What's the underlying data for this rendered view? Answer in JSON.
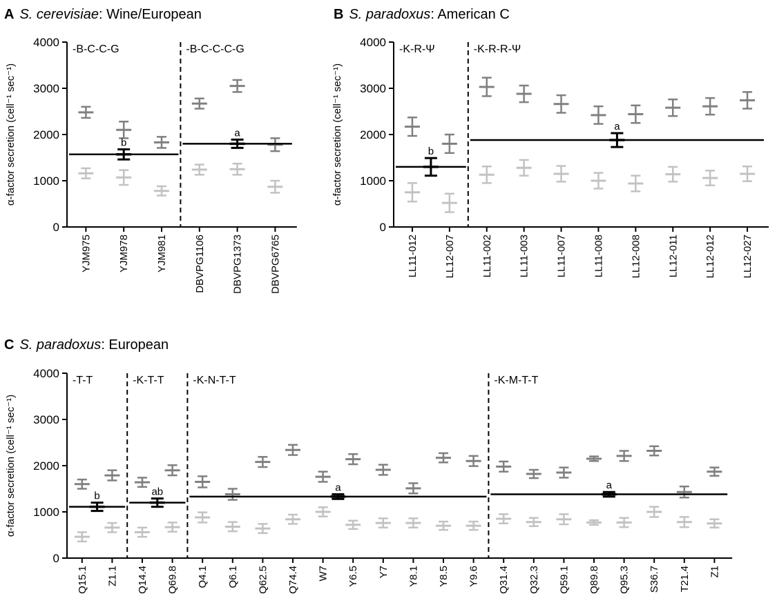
{
  "colors": {
    "dark": "#808080",
    "light": "#c2c2c2",
    "mean": "#000000"
  },
  "chart_data": [
    {
      "type": "scatter",
      "panel": "A",
      "title_italic": "S. cerevisiae",
      "title_rest": ": Wine/European",
      "ylabel": "α-factor secretion (cell⁻¹ sec⁻¹)",
      "ylim": [
        0,
        4000
      ],
      "yticks": [
        0,
        1000,
        2000,
        3000,
        4000
      ],
      "groups": [
        {
          "label": "-B-C-C-G",
          "categories": [
            "YJM975",
            "YJM978",
            "YJM981"
          ],
          "dark": [
            [
              2480,
              120
            ],
            [
              2100,
              180
            ],
            [
              1830,
              120
            ]
          ],
          "light": [
            [
              1160,
              110
            ],
            [
              1070,
              160
            ],
            [
              780,
              100
            ]
          ],
          "mean": 1570,
          "mean_err": 110,
          "sig": "b"
        },
        {
          "label": "-B-C-C-C-G",
          "categories": [
            "DBVPG1106",
            "DBVPG1373",
            "DBVPG6765"
          ],
          "dark": [
            [
              2670,
              110
            ],
            [
              3050,
              130
            ],
            [
              1780,
              140
            ]
          ],
          "light": [
            [
              1240,
              110
            ],
            [
              1250,
              120
            ],
            [
              870,
              130
            ]
          ],
          "mean": 1800,
          "mean_err": 90,
          "sig": "a"
        }
      ]
    },
    {
      "type": "scatter",
      "panel": "B",
      "title_italic": "S. paradoxus",
      "title_rest": ": American C",
      "ylabel": "α-factor secretion (cell⁻¹ sec⁻¹)",
      "ylim": [
        0,
        4000
      ],
      "yticks": [
        0,
        1000,
        2000,
        3000,
        4000
      ],
      "groups": [
        {
          "label": "-K-R-Ψ",
          "categories": [
            "LL11-012",
            "LL12-007"
          ],
          "dark": [
            [
              2170,
              200
            ],
            [
              1800,
              200
            ]
          ],
          "light": [
            [
              750,
              200
            ],
            [
              520,
              200
            ]
          ],
          "mean": 1300,
          "mean_err": 190,
          "sig": "b"
        },
        {
          "label": "-K-R-R-Ψ",
          "categories": [
            "LL11-002",
            "LL11-003",
            "LL11-007",
            "LL11-008",
            "LL12-008",
            "LL12-011",
            "LL12-012",
            "LL12-027"
          ],
          "dark": [
            [
              3030,
              200
            ],
            [
              2880,
              180
            ],
            [
              2660,
              190
            ],
            [
              2420,
              190
            ],
            [
              2440,
              190
            ],
            [
              2580,
              180
            ],
            [
              2610,
              180
            ],
            [
              2740,
              180
            ]
          ],
          "light": [
            [
              1130,
              180
            ],
            [
              1280,
              170
            ],
            [
              1150,
              170
            ],
            [
              1000,
              170
            ],
            [
              940,
              170
            ],
            [
              1140,
              160
            ],
            [
              1060,
              160
            ],
            [
              1150,
              160
            ]
          ],
          "mean": 1880,
          "mean_err": 150,
          "sig": "a"
        }
      ]
    },
    {
      "type": "scatter",
      "panel": "C",
      "title_italic": "S. paradoxus",
      "title_rest": ": European",
      "ylabel": "α-factor secretion (cell⁻¹ sec⁻¹)",
      "ylim": [
        0,
        4000
      ],
      "yticks": [
        0,
        1000,
        2000,
        3000,
        4000
      ],
      "groups": [
        {
          "label": "-T-T",
          "categories": [
            "Q15.1",
            "Z1.1"
          ],
          "dark": [
            [
              1600,
              100
            ],
            [
              1790,
              110
            ]
          ],
          "light": [
            [
              460,
              100
            ],
            [
              660,
              100
            ]
          ],
          "mean": 1110,
          "mean_err": 90,
          "sig": "b"
        },
        {
          "label": "-K-T-T",
          "categories": [
            "Q14.4",
            "Q69.8"
          ],
          "dark": [
            [
              1640,
              100
            ],
            [
              1900,
              110
            ]
          ],
          "light": [
            [
              560,
              100
            ],
            [
              670,
              100
            ]
          ],
          "mean": 1200,
          "mean_err": 90,
          "sig": "ab"
        },
        {
          "label": "-K-N-T-T",
          "categories": [
            "Q4.1",
            "Q6.1",
            "Q62.5",
            "Q74.4",
            "W7",
            "Y6.5",
            "Y7",
            "Y8.1",
            "Y8.5",
            "Y9.6"
          ],
          "dark": [
            [
              1650,
              120
            ],
            [
              1380,
              120
            ],
            [
              2080,
              110
            ],
            [
              2340,
              110
            ],
            [
              1760,
              110
            ],
            [
              2140,
              110
            ],
            [
              1910,
              110
            ],
            [
              1510,
              110
            ],
            [
              2170,
              100
            ],
            [
              2100,
              110
            ]
          ],
          "light": [
            [
              880,
              110
            ],
            [
              680,
              100
            ],
            [
              640,
              100
            ],
            [
              840,
              100
            ],
            [
              1000,
              100
            ],
            [
              720,
              90
            ],
            [
              760,
              100
            ],
            [
              760,
              100
            ],
            [
              700,
              90
            ],
            [
              700,
              90
            ]
          ],
          "mean": 1330,
          "mean_err": 50,
          "sig": "a"
        },
        {
          "label": "-K-M-T-T",
          "categories": [
            "Q31.4",
            "Q32.3",
            "Q59.1",
            "Q89.8",
            "Q95.3",
            "S36.7",
            "T21.4",
            "Z1"
          ],
          "dark": [
            [
              1980,
              110
            ],
            [
              1820,
              90
            ],
            [
              1850,
              110
            ],
            [
              2150,
              50
            ],
            [
              2210,
              110
            ],
            [
              2320,
              100
            ],
            [
              1430,
              120
            ],
            [
              1870,
              90
            ]
          ],
          "light": [
            [
              850,
              100
            ],
            [
              780,
              90
            ],
            [
              840,
              110
            ],
            [
              770,
              50
            ],
            [
              770,
              100
            ],
            [
              1000,
              110
            ],
            [
              780,
              110
            ],
            [
              750,
              90
            ]
          ],
          "mean": 1380,
          "mean_err": 50,
          "sig": "a"
        }
      ]
    }
  ]
}
